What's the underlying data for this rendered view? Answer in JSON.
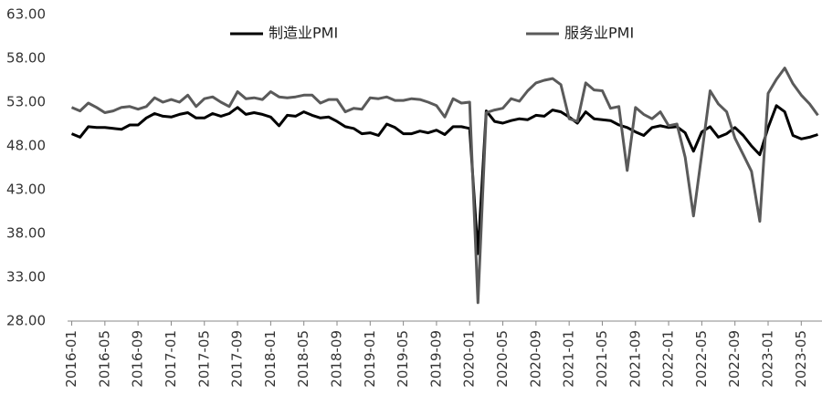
{
  "chart_data": {
    "type": "line",
    "categories": [
      "2016-01",
      null,
      null,
      null,
      "2016-05",
      null,
      null,
      null,
      "2016-09",
      null,
      null,
      null,
      "2017-01",
      null,
      null,
      null,
      "2017-05",
      null,
      null,
      null,
      "2017-09",
      null,
      null,
      null,
      "2018-01",
      null,
      null,
      null,
      "2018-05",
      null,
      null,
      null,
      "2018-09",
      null,
      null,
      null,
      "2019-01",
      null,
      null,
      null,
      "2019-05",
      null,
      null,
      null,
      "2019-09",
      null,
      null,
      null,
      "2020-01",
      null,
      null,
      null,
      "2020-05",
      null,
      null,
      null,
      "2020-09",
      null,
      null,
      null,
      "2021-01",
      null,
      null,
      null,
      "2021-05",
      null,
      null,
      null,
      "2021-09",
      null,
      null,
      null,
      "2022-01",
      null,
      null,
      null,
      "2022-05",
      null,
      null,
      null,
      "2022-09",
      null,
      null,
      null,
      "2023-01",
      null,
      null,
      null,
      "2023-05",
      null,
      null
    ],
    "series": [
      {
        "name": "制造业PMI",
        "color": "#000000",
        "values": [
          49.4,
          49.0,
          50.2,
          50.1,
          50.1,
          50.0,
          49.9,
          50.4,
          50.4,
          51.2,
          51.7,
          51.4,
          51.3,
          51.6,
          51.8,
          51.2,
          51.2,
          51.7,
          51.4,
          51.7,
          52.4,
          51.6,
          51.8,
          51.6,
          51.3,
          50.3,
          51.5,
          51.4,
          51.9,
          51.5,
          51.2,
          51.3,
          50.8,
          50.2,
          50.0,
          49.4,
          49.5,
          49.2,
          50.5,
          50.1,
          49.4,
          49.4,
          49.7,
          49.5,
          49.8,
          49.3,
          50.2,
          50.2,
          50.0,
          35.7,
          52.0,
          50.8,
          50.6,
          50.9,
          51.1,
          51.0,
          51.5,
          51.4,
          52.1,
          51.9,
          51.3,
          50.6,
          51.9,
          51.1,
          51.0,
          50.9,
          50.4,
          50.1,
          49.6,
          49.2,
          50.1,
          50.3,
          50.1,
          50.2,
          49.5,
          47.4,
          49.6,
          50.2,
          49.0,
          49.4,
          50.1,
          49.2,
          48.0,
          47.0,
          50.1,
          52.6,
          51.9,
          49.2,
          48.8,
          49.0,
          49.3
        ]
      },
      {
        "name": "服务业PMI",
        "color": "#5a5a5a",
        "values": [
          52.4,
          52.0,
          52.9,
          52.4,
          51.8,
          52.0,
          52.4,
          52.5,
          52.2,
          52.5,
          53.5,
          53.0,
          53.3,
          53.0,
          53.8,
          52.5,
          53.4,
          53.6,
          53.0,
          52.5,
          54.2,
          53.4,
          53.5,
          53.3,
          54.2,
          53.6,
          53.5,
          53.6,
          53.8,
          53.8,
          52.9,
          53.3,
          53.3,
          51.9,
          52.3,
          52.2,
          53.5,
          53.4,
          53.6,
          53.2,
          53.2,
          53.4,
          53.3,
          53.0,
          52.6,
          51.3,
          53.4,
          52.9,
          53.0,
          30.1,
          51.8,
          52.1,
          52.3,
          53.4,
          53.1,
          54.3,
          55.2,
          55.5,
          55.7,
          55.0,
          51.1,
          50.8,
          55.2,
          54.4,
          54.3,
          52.3,
          52.5,
          45.2,
          52.4,
          51.6,
          51.1,
          51.9,
          50.3,
          50.5,
          46.7,
          40.0,
          47.1,
          54.3,
          52.8,
          51.9,
          48.9,
          47.0,
          45.1,
          39.4,
          54.0,
          55.6,
          56.9,
          55.1,
          53.8,
          52.8,
          51.5
        ]
      }
    ],
    "ylim": [
      28,
      63
    ],
    "yticks": [
      {
        "value": 28,
        "label": "28.00"
      },
      {
        "value": 33,
        "label": "33.00"
      },
      {
        "value": 38,
        "label": "38.00"
      },
      {
        "value": 43,
        "label": "43.00"
      },
      {
        "value": 48,
        "label": "48.00"
      },
      {
        "value": 53,
        "label": "53.00"
      },
      {
        "value": 58,
        "label": "58.00"
      },
      {
        "value": 63,
        "label": "63.00"
      }
    ],
    "grid": false
  }
}
